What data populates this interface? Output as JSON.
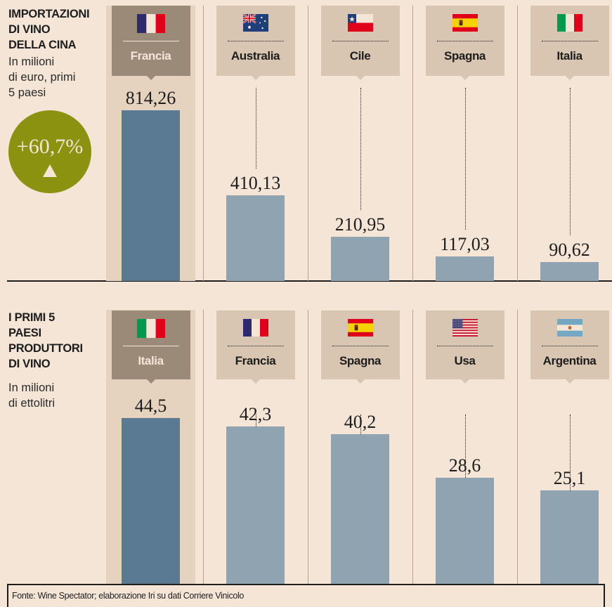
{
  "colors": {
    "background": "#f4e5d7",
    "highlight_column": "#e5d3bf",
    "highlight_box": "#9c8a79",
    "highlight_box_text": "#f4e5d7",
    "label_box": "#d9c6b2",
    "label_text": "#1d1d1d",
    "highlight_bar": "#5a7a94",
    "bar": "#8fa3b0",
    "separator": "#b8a48e",
    "badge": "#8a9210"
  },
  "chart_data": [
    {
      "type": "bar",
      "title": "IMPORTAZIONI DI VINO DELLA CINA",
      "title_lines": [
        "IMPORTAZIONI",
        "DI VINO",
        "DELLA CINA"
      ],
      "subtitle": "In milioni di euro, primi 5 paesi",
      "subtitle_lines": [
        "In milioni",
        "di euro, primi",
        "5 paesi"
      ],
      "categories": [
        "Francia",
        "Australia",
        "Cile",
        "Spagna",
        "Italia"
      ],
      "flags": [
        "france",
        "australia",
        "chile",
        "spain",
        "italy"
      ],
      "values": [
        814.26,
        410.13,
        210.95,
        117.03,
        90.62
      ],
      "value_labels": [
        "814,26",
        "410,13",
        "210,95",
        "117,03",
        "90,62"
      ],
      "highlight": "Francia",
      "unit": "milioni di euro",
      "xlabel": "",
      "ylabel": "",
      "ylim": [
        0,
        814.26
      ],
      "grid": false,
      "badge": {
        "text": "+60,7%",
        "direction": "up"
      }
    },
    {
      "type": "bar",
      "title": "I PRIMI 5 PAESI PRODUTTORI DI VINO",
      "title_lines": [
        "I PRIMI 5",
        "PAESI",
        "PRODUTTORI",
        "DI VINO"
      ],
      "subtitle": "In milioni di ettolitri",
      "subtitle_lines": [
        "In milioni",
        "di ettolitri"
      ],
      "categories": [
        "Italia",
        "Francia",
        "Spagna",
        "Usa",
        "Argentina"
      ],
      "flags": [
        "italy",
        "france",
        "spain",
        "usa",
        "argentina"
      ],
      "values": [
        44.5,
        42.3,
        40.2,
        28.6,
        25.1
      ],
      "value_labels": [
        "44,5",
        "42,3",
        "40,2",
        "28,6",
        "25,1"
      ],
      "highlight": "Italia",
      "unit": "milioni di ettolitri",
      "xlabel": "",
      "ylabel": "",
      "ylim": [
        0,
        44.5
      ],
      "grid": false
    }
  ],
  "footer": {
    "source": "Fonte: Wine Spectator; elaborazione Iri su dati Corriere Vinicolo"
  }
}
